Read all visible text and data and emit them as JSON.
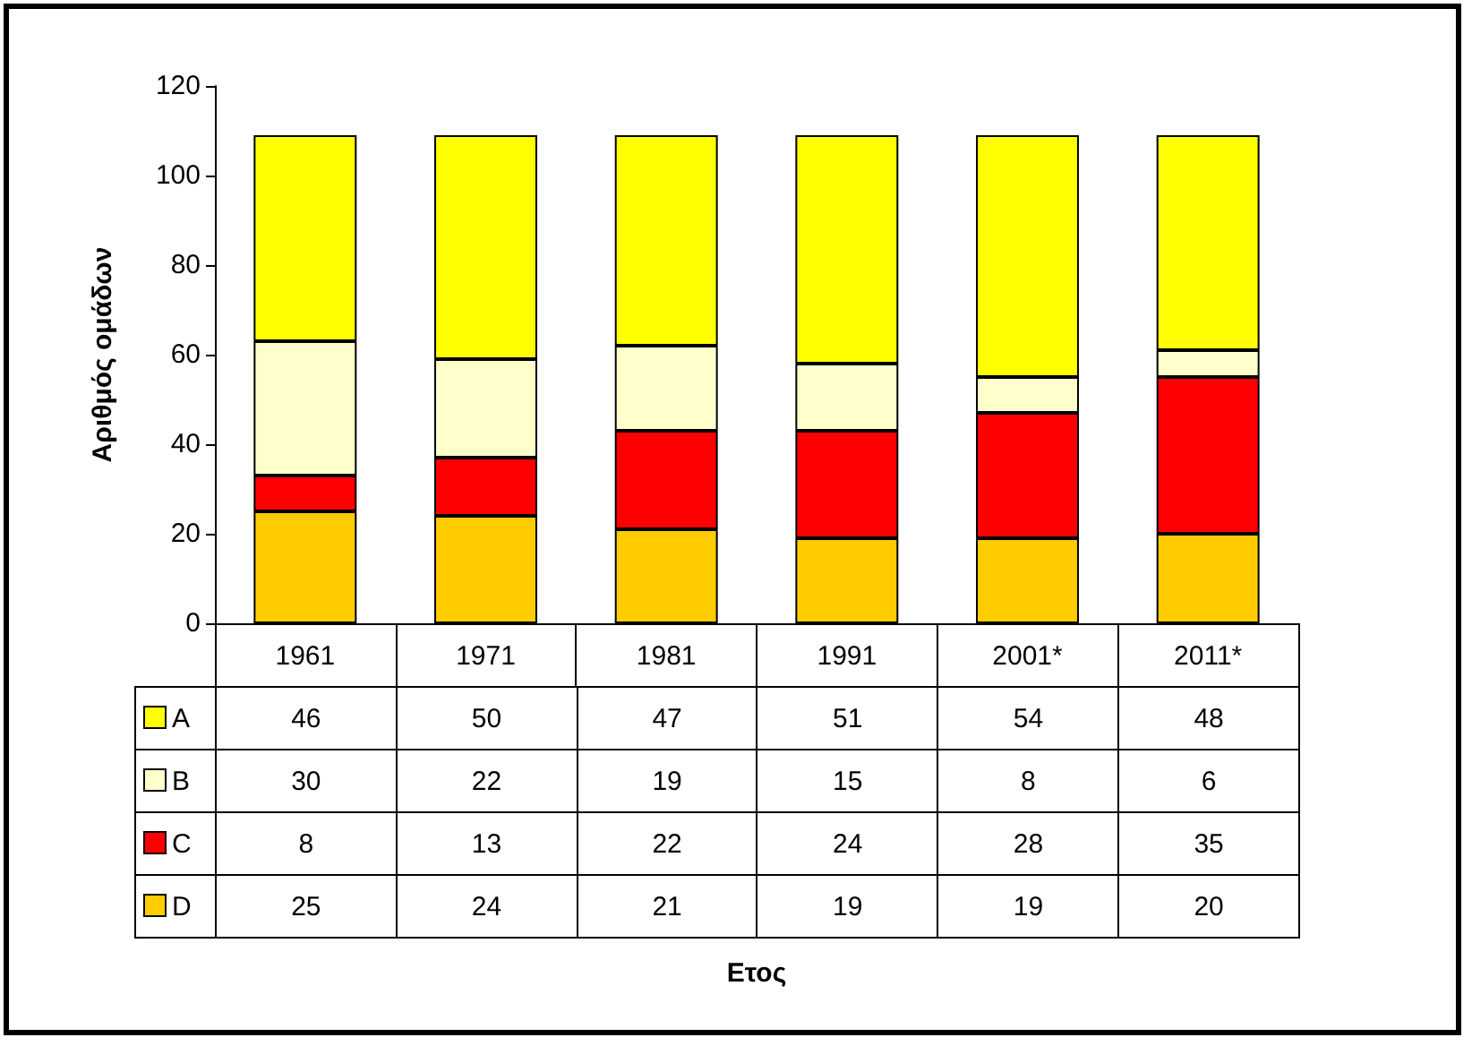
{
  "chart_data": {
    "type": "bar",
    "stacked": true,
    "annotations": [
      "Ετος"
    ],
    "ylabel": "Αριθμός ομάδων",
    "categories": [
      "1961",
      "1971",
      "1981",
      "1991",
      "2001*",
      "2011*"
    ],
    "series": [
      {
        "name": "D",
        "color": "#ffcc00",
        "values": [
          25,
          24,
          21,
          19,
          19,
          20
        ]
      },
      {
        "name": "C",
        "color": "#ff0000",
        "values": [
          8,
          13,
          22,
          24,
          28,
          35
        ]
      },
      {
        "name": "B",
        "color": "#ffffcc",
        "values": [
          30,
          22,
          19,
          15,
          8,
          6
        ]
      },
      {
        "name": "A",
        "color": "#ffff00",
        "values": [
          46,
          50,
          47,
          51,
          54,
          48
        ]
      }
    ],
    "ylim": [
      0,
      120
    ],
    "yticks": [
      0,
      20,
      40,
      60,
      80,
      100,
      120
    ],
    "grid": false,
    "legend": "bottom",
    "data_labels": true
  }
}
